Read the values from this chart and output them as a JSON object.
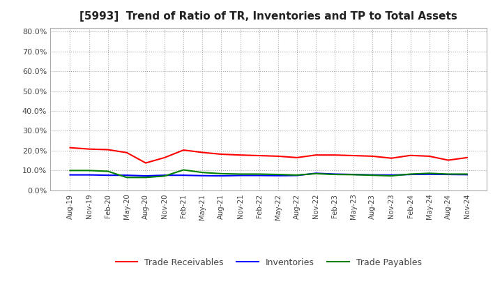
{
  "title": "[5993]  Trend of Ratio of TR, Inventories and TP to Total Assets",
  "x_labels": [
    "Aug-19",
    "Nov-19",
    "Feb-20",
    "May-20",
    "Aug-20",
    "Nov-20",
    "Feb-21",
    "May-21",
    "Aug-21",
    "Nov-21",
    "Feb-22",
    "May-22",
    "Aug-22",
    "Nov-22",
    "Feb-23",
    "May-23",
    "Aug-23",
    "Nov-23",
    "Feb-24",
    "May-24",
    "Aug-24",
    "Nov-24"
  ],
  "trade_receivables": [
    0.215,
    0.208,
    0.205,
    0.19,
    0.138,
    0.165,
    0.203,
    0.191,
    0.182,
    0.178,
    0.175,
    0.172,
    0.165,
    0.178,
    0.178,
    0.175,
    0.172,
    0.162,
    0.176,
    0.172,
    0.152,
    0.165
  ],
  "inventories": [
    0.078,
    0.078,
    0.076,
    0.076,
    0.073,
    0.076,
    0.076,
    0.074,
    0.073,
    0.075,
    0.075,
    0.074,
    0.075,
    0.086,
    0.082,
    0.08,
    0.078,
    0.077,
    0.08,
    0.081,
    0.08,
    0.079
  ],
  "trade_payables": [
    0.1,
    0.1,
    0.096,
    0.065,
    0.065,
    0.072,
    0.103,
    0.09,
    0.084,
    0.082,
    0.082,
    0.08,
    0.077,
    0.084,
    0.08,
    0.079,
    0.076,
    0.073,
    0.082,
    0.086,
    0.082,
    0.082
  ],
  "tr_color": "#ff0000",
  "inv_color": "#0000ff",
  "tp_color": "#008000",
  "ylim": [
    0.0,
    0.82
  ],
  "yticks": [
    0.0,
    0.1,
    0.2,
    0.3,
    0.4,
    0.5,
    0.6,
    0.7,
    0.8
  ],
  "bg_color": "#ffffff",
  "grid_color": "#aaaaaa",
  "spine_color": "#aaaaaa"
}
